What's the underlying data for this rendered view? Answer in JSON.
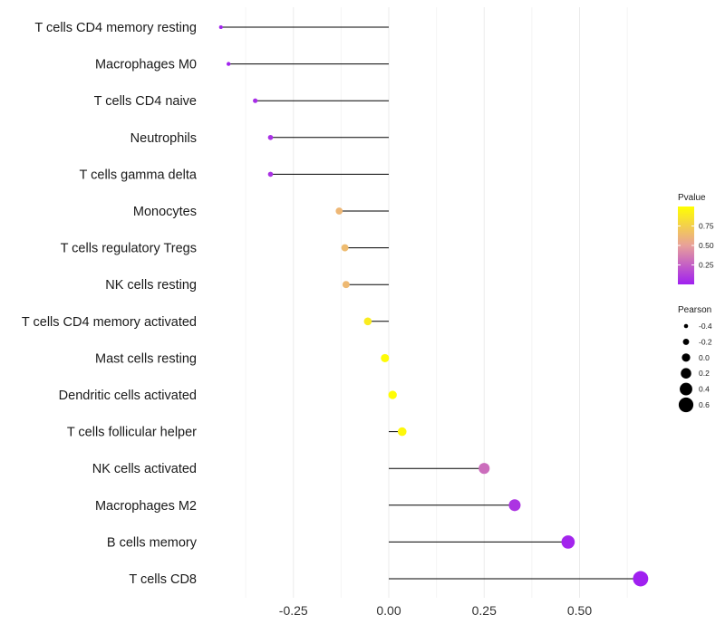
{
  "chart_data": {
    "type": "lollipop",
    "title": "",
    "xlabel": "",
    "ylabel": "",
    "xlim": [
      -0.5,
      0.7
    ],
    "xticks": [
      "-0.25",
      "0.00",
      "0.25",
      "0.50"
    ],
    "xtick_values": [
      -0.25,
      0.0,
      0.25,
      0.5
    ],
    "categories": [
      "T cells CD4 memory resting",
      "Macrophages M0",
      "T cells CD4 naive",
      "Neutrophils",
      "T cells gamma delta",
      "Monocytes",
      "T cells regulatory  Tregs",
      "NK cells resting",
      "T cells CD4 memory activated",
      "Mast cells resting",
      "Dendritic cells activated",
      "T cells follicular helper",
      "NK cells activated",
      "Macrophages M2",
      "B cells memory",
      "T cells CD8"
    ],
    "pearson": [
      -0.44,
      -0.42,
      -0.35,
      -0.31,
      -0.31,
      -0.13,
      -0.115,
      -0.112,
      -0.055,
      -0.01,
      0.01,
      0.035,
      0.25,
      0.33,
      0.47,
      0.66
    ],
    "pvalue": [
      0.01,
      0.01,
      0.05,
      0.06,
      0.07,
      0.62,
      0.64,
      0.63,
      0.9,
      0.98,
      0.99,
      0.96,
      0.3,
      0.08,
      0.02,
      0.001
    ],
    "legend": {
      "color_title": "Pvalue",
      "color_ticks": [
        "0.75",
        "0.50",
        "0.25"
      ],
      "color_tick_values": [
        0.75,
        0.5,
        0.25
      ],
      "color_low": "#a020f0",
      "color_mid": "#e8a09a",
      "color_high": "#ffff00",
      "size_title": "Pearson",
      "size_ticks": [
        "-0.4",
        "-0.2",
        "0.0",
        "0.2",
        "0.4",
        "0.6"
      ],
      "size_tick_values": [
        -0.4,
        -0.2,
        0.0,
        0.2,
        0.4,
        0.6
      ],
      "placement": "right"
    }
  }
}
